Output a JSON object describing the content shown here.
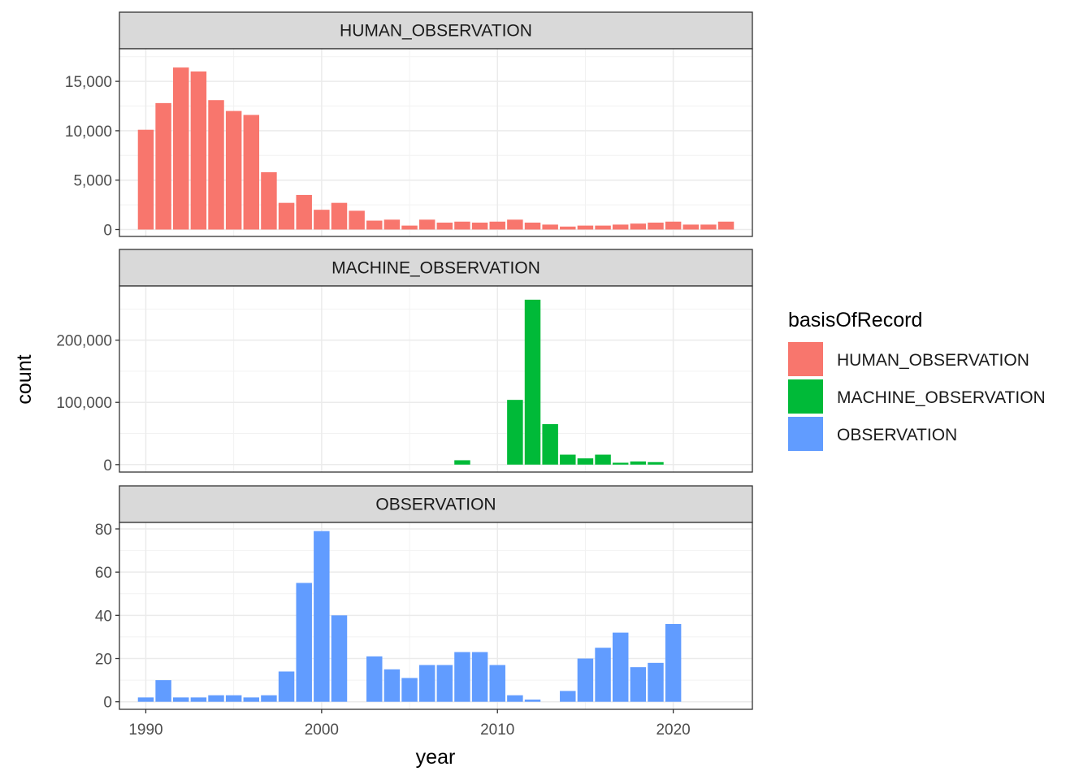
{
  "chart_data": {
    "type": "bar",
    "xlabel": "year",
    "ylabel": "count",
    "x_ticks": [
      1990,
      2000,
      2010,
      2020
    ],
    "xlim": [
      1988.5,
      2024.5
    ],
    "legend": {
      "title": "basisOfRecord",
      "placement": "right",
      "entries": [
        {
          "label": "HUMAN_OBSERVATION",
          "color": "#F8766D"
        },
        {
          "label": "MACHINE_OBSERVATION",
          "color": "#00BA38"
        },
        {
          "label": "OBSERVATION",
          "color": "#619CFF"
        }
      ]
    },
    "facets": [
      {
        "strip": "HUMAN_OBSERVATION",
        "color": "#F8766D",
        "ylim": [
          -700,
          18300
        ],
        "y_ticks": [
          0,
          5000,
          10000,
          15000
        ],
        "y_tick_labels": [
          "0",
          "5,000",
          "10,000",
          "15,000"
        ],
        "years": [
          1990,
          1991,
          1992,
          1993,
          1994,
          1995,
          1996,
          1997,
          1998,
          1999,
          2000,
          2001,
          2002,
          2003,
          2004,
          2005,
          2006,
          2007,
          2008,
          2009,
          2010,
          2011,
          2012,
          2013,
          2014,
          2015,
          2016,
          2017,
          2018,
          2019,
          2020,
          2021,
          2022,
          2023
        ],
        "values": [
          10100,
          12800,
          16400,
          16000,
          13100,
          12000,
          11600,
          5800,
          2700,
          3500,
          2000,
          2700,
          1900,
          900,
          1000,
          400,
          1000,
          700,
          800,
          700,
          800,
          1000,
          700,
          500,
          300,
          400,
          400,
          500,
          600,
          700,
          800,
          500,
          500,
          800
        ]
      },
      {
        "strip": "MACHINE_OBSERVATION",
        "color": "#00BA38",
        "ylim": [
          -12000,
          287000
        ],
        "y_ticks": [
          0,
          100000,
          200000
        ],
        "y_tick_labels": [
          "0",
          "100,000",
          "200,000"
        ],
        "years": [
          2008,
          2011,
          2012,
          2013,
          2014,
          2015,
          2016,
          2017,
          2018,
          2019
        ],
        "values": [
          7000,
          104000,
          265000,
          65000,
          16000,
          10000,
          16000,
          3000,
          5000,
          4000
        ]
      },
      {
        "strip": "OBSERVATION",
        "color": "#619CFF",
        "ylim": [
          -3.5,
          83
        ],
        "y_ticks": [
          0,
          20,
          40,
          60,
          80
        ],
        "y_tick_labels": [
          "0",
          "20",
          "40",
          "60",
          "80"
        ],
        "years": [
          1990,
          1991,
          1992,
          1993,
          1994,
          1995,
          1996,
          1997,
          1998,
          1999,
          2000,
          2001,
          2003,
          2004,
          2005,
          2006,
          2007,
          2008,
          2009,
          2010,
          2011,
          2012,
          2014,
          2015,
          2016,
          2017,
          2018,
          2019,
          2020
        ],
        "values": [
          2,
          10,
          2,
          2,
          3,
          3,
          2,
          3,
          14,
          55,
          79,
          40,
          21,
          15,
          11,
          17,
          17,
          23,
          23,
          17,
          3,
          1,
          5,
          20,
          25,
          32,
          16,
          18,
          36
        ]
      }
    ]
  }
}
